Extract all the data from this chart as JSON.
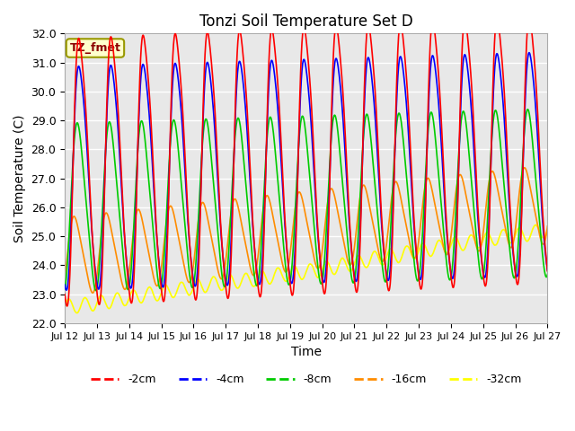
{
  "title": "Tonzi Soil Temperature Set D",
  "xlabel": "Time",
  "ylabel": "Soil Temperature (C)",
  "ylim": [
    22.0,
    32.0
  ],
  "yticks": [
    22.0,
    23.0,
    24.0,
    25.0,
    26.0,
    27.0,
    28.0,
    29.0,
    30.0,
    31.0,
    32.0
  ],
  "xtick_labels": [
    "Jul 12",
    "Jul 13",
    "Jul 14",
    "Jul 15",
    "Jul 16",
    "Jul 17",
    "Jul 18",
    "Jul 19",
    "Jul 20",
    "Jul 21",
    "Jul 22",
    "Jul 23",
    "Jul 24",
    "Jul 25",
    "Jul 26",
    "Jul 27"
  ],
  "annotation_text": "TZ_fmet",
  "annotation_bg": "#FFFFCC",
  "annotation_border": "#999900",
  "bg_color": "#E8E8E8",
  "line_colors": {
    "-2cm": "#FF0000",
    "-4cm": "#0000FF",
    "-8cm": "#00CC00",
    "-16cm": "#FF8C00",
    "-32cm": "#FFFF00"
  },
  "legend_labels": [
    "-2cm",
    "-4cm",
    "-8cm",
    "-16cm",
    "-32cm"
  ],
  "n_days": 15,
  "pts_per_day": 96
}
